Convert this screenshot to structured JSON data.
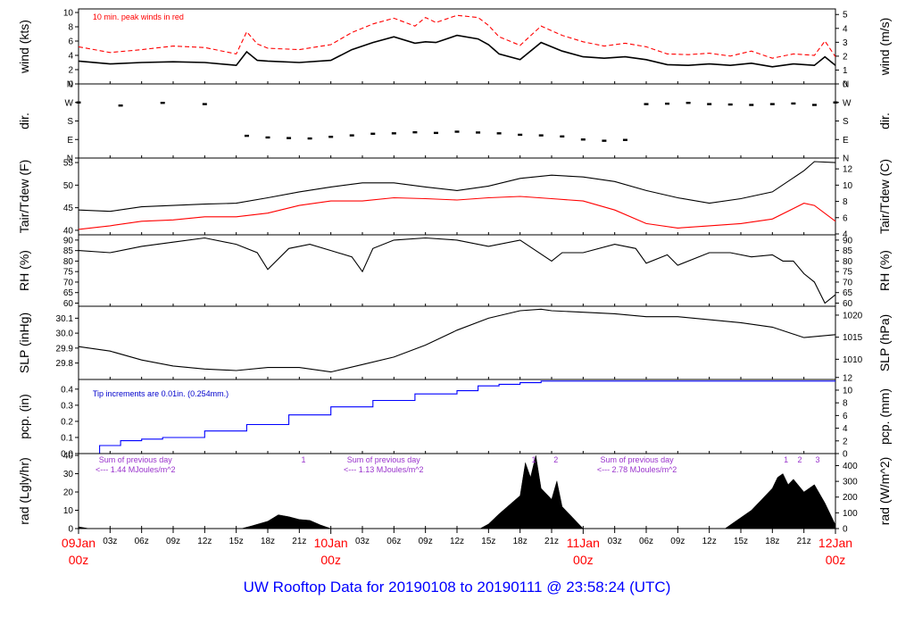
{
  "colors": {
    "axis": "#000000",
    "primary_trace": "#000000",
    "peak_wind": "#ff0000",
    "dewpoint": "#ff0000",
    "precip": "#0000ff",
    "precip_note": "#0000cc",
    "radiation_note": "#9933cc",
    "date_labels": "#ff0000",
    "footer": "#0000ff"
  },
  "footer": "UW Rooftop Data for 20190108  to  20190111 @ 23:58:24  (UTC)",
  "x_axis": {
    "hour_ticks": [
      "03z",
      "06z",
      "09z",
      "12z",
      "15z",
      "18z",
      "21z",
      "03z",
      "06z",
      "09z",
      "12z",
      "15z",
      "18z",
      "21z",
      "03z",
      "06z",
      "09z",
      "12z",
      "15z",
      "18z",
      "21z"
    ],
    "hour_offsets": [
      3,
      6,
      9,
      12,
      15,
      18,
      21,
      27,
      30,
      33,
      36,
      39,
      42,
      45,
      51,
      54,
      57,
      60,
      63,
      66,
      69
    ],
    "day_labels": [
      {
        "day": "09Jan",
        "hour": "00z",
        "offset": 0
      },
      {
        "day": "10Jan",
        "hour": "00z",
        "offset": 24
      },
      {
        "day": "11Jan",
        "hour": "00z",
        "offset": 48
      },
      {
        "day": "12Jan",
        "hour": "00z",
        "offset": 72
      }
    ],
    "range_hours": [
      0,
      72
    ]
  },
  "chart_data": [
    {
      "type": "line",
      "id": "wind",
      "ylabel": "wind (kts)",
      "ylabel_right": "wind (m/s)",
      "ylim": [
        0,
        10.5
      ],
      "left_ticks": [
        0,
        2,
        4,
        6,
        8,
        10
      ],
      "right_ticks": [
        0,
        1,
        2,
        3,
        4,
        5
      ],
      "annotation": "10 min. peak winds in red",
      "series": [
        {
          "values_x": [
            0,
            3,
            6,
            9,
            12,
            15,
            16,
            17,
            18,
            21,
            24,
            26,
            28,
            30,
            32,
            33,
            34,
            36,
            38,
            39,
            40,
            42,
            44,
            46,
            48,
            50,
            52,
            54,
            56,
            58,
            60,
            62,
            64,
            66,
            68,
            70,
            71,
            72
          ],
          "values": [
            3.2,
            2.8,
            3,
            3.1,
            3,
            2.6,
            4.5,
            3.3,
            3.2,
            3,
            3.3,
            4.8,
            5.8,
            6.6,
            5.7,
            5.9,
            5.8,
            6.8,
            6.3,
            5.5,
            4.2,
            3.4,
            5.8,
            4.6,
            3.8,
            3.6,
            3.8,
            3.4,
            2.7,
            2.6,
            2.8,
            2.6,
            2.9,
            2.4,
            2.8,
            2.6,
            3.8,
            2.6
          ]
        },
        {
          "values_x": [
            0,
            3,
            6,
            9,
            12,
            15,
            16,
            17,
            18,
            21,
            24,
            26,
            28,
            30,
            32,
            33,
            34,
            36,
            38,
            39,
            40,
            42,
            44,
            46,
            48,
            50,
            52,
            54,
            56,
            58,
            60,
            62,
            64,
            66,
            68,
            70,
            71,
            72
          ],
          "values": [
            5.2,
            4.4,
            4.8,
            5.3,
            5.1,
            4.2,
            7.3,
            5.6,
            5,
            4.8,
            5.5,
            7.2,
            8.4,
            9.2,
            8.1,
            9.3,
            8.6,
            9.6,
            9.3,
            8.2,
            6.6,
            5.4,
            8.1,
            6.8,
            5.9,
            5.3,
            5.7,
            5.2,
            4.2,
            4.1,
            4.3,
            3.9,
            4.6,
            3.6,
            4.2,
            4,
            6,
            3.8
          ]
        }
      ]
    },
    {
      "type": "scatter",
      "id": "dir",
      "ylabel": "dir.",
      "ylabel_right": "dir.",
      "ylim": [
        0,
        360
      ],
      "left_ticks": [
        "N",
        "W",
        "S",
        "E",
        "N"
      ],
      "right_ticks": [
        "N",
        "W",
        "S",
        "E",
        "N"
      ],
      "tick_values": [
        360,
        270,
        180,
        90,
        0
      ],
      "series": [
        {
          "values_x": [
            0,
            4,
            8,
            12,
            16,
            18,
            20,
            22,
            24,
            26,
            28,
            30,
            32,
            34,
            36,
            38,
            40,
            42,
            44,
            46,
            48,
            50,
            52,
            54,
            56,
            58,
            60,
            62,
            64,
            66,
            68,
            70,
            72
          ],
          "values": [
            270,
            255,
            268,
            262,
            108,
            100,
            97,
            95,
            103,
            110,
            118,
            120,
            125,
            122,
            128,
            124,
            120,
            113,
            110,
            105,
            90,
            84,
            88,
            262,
            264,
            268,
            262,
            260,
            258,
            262,
            265,
            258,
            270
          ]
        }
      ]
    },
    {
      "type": "line",
      "id": "temp",
      "ylabel": "Tair/Tdew (F)",
      "ylabel_right": "Tair/Tdew (C)",
      "ylim": [
        39,
        56
      ],
      "left_ticks": [
        40,
        45,
        50,
        55
      ],
      "right_ticks": [
        4,
        6,
        8,
        10,
        12
      ],
      "series": [
        {
          "values_x": [
            0,
            3,
            6,
            9,
            12,
            15,
            18,
            21,
            24,
            27,
            30,
            33,
            36,
            39,
            42,
            45,
            48,
            51,
            54,
            57,
            60,
            63,
            66,
            69,
            70,
            72
          ],
          "values": [
            44.5,
            44.2,
            45.2,
            45.5,
            45.8,
            46,
            47.2,
            48.5,
            49.6,
            50.5,
            50.5,
            49.6,
            48.8,
            49.8,
            51.5,
            52.2,
            51.8,
            50.8,
            48.8,
            47.2,
            46,
            47,
            48.5,
            53.2,
            55.2,
            55
          ]
        },
        {
          "values_x": [
            0,
            3,
            6,
            9,
            12,
            15,
            18,
            21,
            24,
            27,
            30,
            33,
            36,
            39,
            42,
            45,
            48,
            51,
            54,
            57,
            60,
            63,
            66,
            69,
            70,
            72
          ],
          "values": [
            40.2,
            41,
            42,
            42.3,
            43,
            43,
            43.8,
            45.5,
            46.5,
            46.5,
            47.2,
            47,
            46.7,
            47.2,
            47.5,
            47,
            46.5,
            44.5,
            41.5,
            40.5,
            41,
            41.5,
            42.5,
            46,
            45.5,
            42
          ]
        }
      ]
    },
    {
      "type": "line",
      "id": "rh",
      "ylabel": "RH (%)",
      "ylabel_right": "RH (%)",
      "ylim": [
        58.5,
        92.5
      ],
      "left_ticks": [
        60,
        65,
        70,
        75,
        80,
        85,
        90
      ],
      "right_ticks": [
        60,
        65,
        70,
        75,
        80,
        85,
        90
      ],
      "series": [
        {
          "values_x": [
            0,
            3,
            6,
            9,
            12,
            15,
            17,
            18,
            20,
            22,
            24,
            26,
            27,
            28,
            30,
            33,
            36,
            39,
            42,
            45,
            46,
            48,
            51,
            53,
            54,
            56,
            57,
            60,
            62,
            64,
            66,
            67,
            68,
            69,
            70,
            71,
            72
          ],
          "values": [
            85,
            84,
            87,
            89,
            91,
            88,
            84,
            76,
            86,
            88,
            85,
            82,
            75,
            86,
            90,
            91,
            90,
            87,
            90,
            80,
            84,
            84,
            88,
            86,
            79,
            83,
            78,
            84,
            84,
            82,
            83,
            80,
            80,
            74,
            70,
            60,
            64
          ]
        }
      ]
    },
    {
      "type": "line",
      "id": "slp",
      "ylabel": "SLP (inHg)",
      "ylabel_right": "SLP (hPa)",
      "ylim": [
        29.69,
        30.18
      ],
      "left_ticks": [
        29.8,
        29.9,
        30.0,
        30.1
      ],
      "right_ticks": [
        1010,
        1015,
        1020
      ],
      "series": [
        {
          "values_x": [
            0,
            3,
            6,
            9,
            12,
            15,
            18,
            21,
            24,
            27,
            30,
            33,
            36,
            39,
            42,
            44,
            45,
            48,
            51,
            54,
            57,
            60,
            63,
            66,
            69,
            72
          ],
          "values": [
            29.91,
            29.88,
            29.82,
            29.78,
            29.76,
            29.75,
            29.77,
            29.77,
            29.74,
            29.79,
            29.84,
            29.92,
            30.02,
            30.1,
            30.15,
            30.16,
            30.15,
            30.14,
            30.13,
            30.11,
            30.11,
            30.09,
            30.07,
            30.04,
            29.97,
            29.99
          ]
        }
      ]
    },
    {
      "type": "line",
      "id": "pcp",
      "ylabel": "pcp. (in)",
      "ylabel_right": "pcp. (mm)",
      "ylim": [
        0,
        0.46
      ],
      "left_ticks": [
        0.0,
        0.1,
        0.2,
        0.3,
        0.4
      ],
      "right_ticks": [
        0,
        2,
        4,
        6,
        8,
        10,
        12
      ],
      "annotation": "Tip increments are 0.01in. (0.254mm.)",
      "series": [
        {
          "values_x": [
            0,
            2,
            4,
            6,
            8,
            12,
            16,
            20,
            24,
            28,
            32,
            36,
            38,
            40,
            42,
            44,
            46,
            48,
            72
          ],
          "values": [
            0,
            0.05,
            0.08,
            0.09,
            0.1,
            0.14,
            0.18,
            0.24,
            0.29,
            0.33,
            0.37,
            0.39,
            0.42,
            0.43,
            0.44,
            0.45,
            0.45,
            0.45,
            0.45
          ]
        }
      ]
    },
    {
      "type": "area",
      "id": "rad",
      "ylabel": "rad (Lgly/hr)",
      "ylabel_right": "rad (W/m^2)",
      "ylim": [
        0,
        41
      ],
      "left_ticks": [
        0,
        10,
        20,
        30,
        40
      ],
      "right_ticks": [
        0,
        100,
        200,
        300,
        400
      ],
      "annotations": [
        {
          "lines": [
            "Sum of previous day",
            "<--- 1.44 MJoules/m^2"
          ],
          "hour": 1
        },
        {
          "lines": [
            "Sum of previous day",
            "<--- 1.13 MJoules/m^2"
          ],
          "hour": 24.6
        },
        {
          "lines": [
            "Sum of previous day",
            "<--- 2.78 MJoules/m^2"
          ],
          "hour": 48.7
        }
      ],
      "markers": [
        {
          "label": "1",
          "hour": 21.4
        },
        {
          "label": "1",
          "hour": 43.3
        },
        {
          "label": "2",
          "hour": 45.4
        },
        {
          "label": "1",
          "hour": 67.3
        },
        {
          "label": "2",
          "hour": 68.6
        },
        {
          "label": "3",
          "hour": 70.3
        }
      ],
      "series": [
        {
          "values_x": [
            0,
            0.5,
            1,
            15.5,
            16.5,
            18,
            19,
            20,
            21,
            22,
            23,
            24,
            38.2,
            39,
            40,
            42,
            42.5,
            43,
            43.5,
            44,
            45,
            45.5,
            46,
            47,
            48,
            61.5,
            62.5,
            64,
            65,
            66,
            66.5,
            67,
            67.5,
            68,
            69,
            70,
            71,
            72
          ],
          "values": [
            1,
            0.5,
            0,
            0,
            1.5,
            4,
            7.5,
            6.5,
            5,
            4.5,
            2,
            0,
            0,
            2.5,
            8,
            18,
            36,
            28,
            40,
            22,
            16,
            26,
            12,
            6,
            0,
            0,
            4,
            10,
            16,
            22,
            28,
            30,
            24,
            27,
            20,
            24,
            14,
            2
          ]
        }
      ]
    }
  ]
}
